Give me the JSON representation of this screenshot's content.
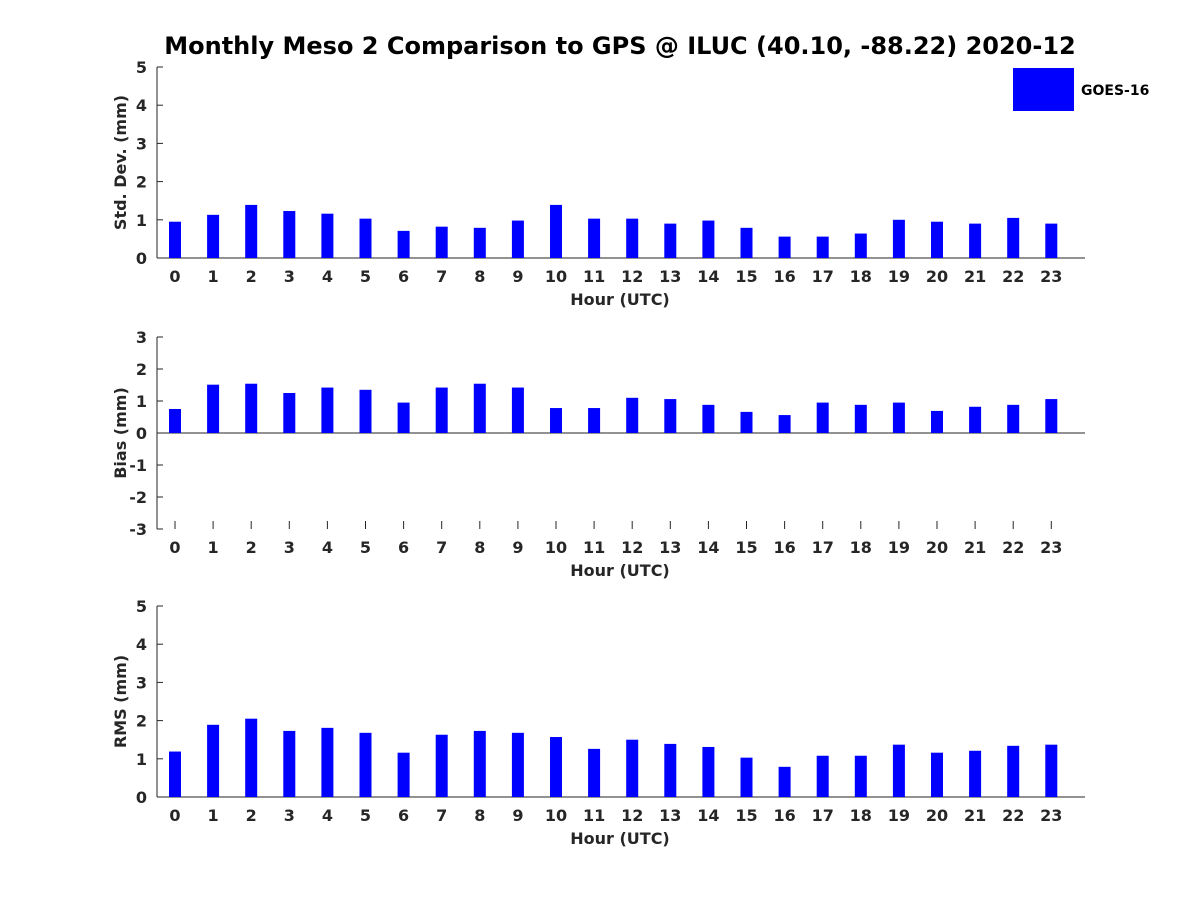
{
  "title": "Monthly Meso 2 Comparison to GPS @ ILUC (40.10, -88.22) 2020-12",
  "legend": {
    "label": "GOES-16",
    "color": "#0000ff",
    "placement": "top-right"
  },
  "chart_data": [
    {
      "type": "bar",
      "name": "std-dev",
      "series": [
        {
          "name": "GOES-16",
          "values": [
            0.95,
            1.13,
            1.39,
            1.23,
            1.16,
            1.03,
            0.71,
            0.82,
            0.79,
            0.98,
            1.39,
            1.03,
            1.03,
            0.9,
            0.98,
            0.79,
            0.56,
            0.56,
            0.64,
            1.0,
            0.95,
            0.9,
            1.05,
            0.9
          ]
        }
      ],
      "categories": [
        "0",
        "1",
        "2",
        "3",
        "4",
        "5",
        "6",
        "7",
        "8",
        "9",
        "10",
        "11",
        "12",
        "13",
        "14",
        "15",
        "16",
        "17",
        "18",
        "19",
        "20",
        "21",
        "22",
        "23"
      ],
      "xlabel": "Hour (UTC)",
      "ylabel": "Std. Dev. (mm)",
      "ylim": [
        0,
        5
      ],
      "yticks": [
        "0",
        "1",
        "2",
        "3",
        "4",
        "5"
      ],
      "grid": false
    },
    {
      "type": "bar",
      "name": "bias",
      "series": [
        {
          "name": "GOES-16",
          "values": [
            0.75,
            1.51,
            1.54,
            1.25,
            1.42,
            1.35,
            0.95,
            1.42,
            1.54,
            1.42,
            0.78,
            0.78,
            1.1,
            1.06,
            0.88,
            0.66,
            0.56,
            0.95,
            0.88,
            0.95,
            0.69,
            0.82,
            0.88,
            1.06
          ]
        }
      ],
      "categories": [
        "0",
        "1",
        "2",
        "3",
        "4",
        "5",
        "6",
        "7",
        "8",
        "9",
        "10",
        "11",
        "12",
        "13",
        "14",
        "15",
        "16",
        "17",
        "18",
        "19",
        "20",
        "21",
        "22",
        "23"
      ],
      "xlabel": "Hour (UTC)",
      "ylabel": "Bias (mm)",
      "ylim": [
        -3,
        3
      ],
      "yticks": [
        "-3",
        "-2",
        "-1",
        "0",
        "1",
        "2",
        "3"
      ],
      "grid": false
    },
    {
      "type": "bar",
      "name": "rms",
      "series": [
        {
          "name": "GOES-16",
          "values": [
            1.19,
            1.89,
            2.05,
            1.73,
            1.81,
            1.68,
            1.16,
            1.63,
            1.73,
            1.68,
            1.57,
            1.26,
            1.5,
            1.39,
            1.31,
            1.03,
            0.79,
            1.08,
            1.08,
            1.37,
            1.16,
            1.21,
            1.34,
            1.37
          ]
        }
      ],
      "categories": [
        "0",
        "1",
        "2",
        "3",
        "4",
        "5",
        "6",
        "7",
        "8",
        "9",
        "10",
        "11",
        "12",
        "13",
        "14",
        "15",
        "16",
        "17",
        "18",
        "19",
        "20",
        "21",
        "22",
        "23"
      ],
      "xlabel": "Hour (UTC)",
      "ylabel": "RMS (mm)",
      "ylim": [
        0,
        5
      ],
      "yticks": [
        "0",
        "1",
        "2",
        "3",
        "4",
        "5"
      ],
      "grid": false
    }
  ]
}
